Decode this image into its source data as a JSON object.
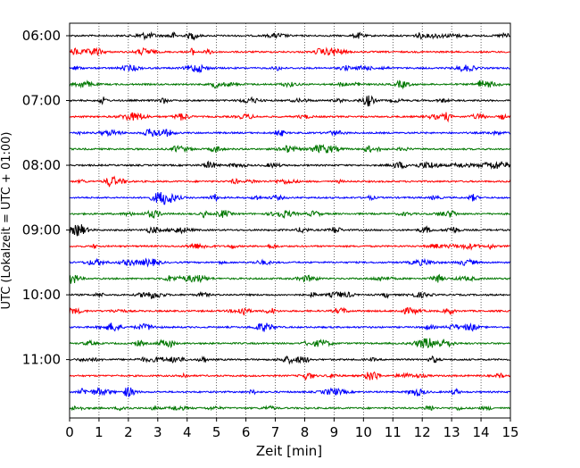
{
  "chart_data": {
    "type": "line",
    "title": "",
    "xlabel": "Zeit  [min]",
    "ylabel": "UTC (Lokalzeit = UTC + 01:00)",
    "xlim": [
      0,
      15
    ],
    "x_ticks": [
      "0",
      "1",
      "2",
      "3",
      "4",
      "5",
      "6",
      "7",
      "8",
      "9",
      "10",
      "11",
      "12",
      "13",
      "14",
      "15"
    ],
    "y_tick_labels": [
      "06:00",
      "07:00",
      "08:00",
      "09:00",
      "10:00",
      "11:00"
    ],
    "grid": "vertical dotted at each minute",
    "rows_start": "06:00",
    "row_interval_minutes": 15,
    "row_count": 24,
    "trace_colors": [
      "#000000",
      "#ff0000",
      "#0000ff",
      "#007700"
    ],
    "legend": "none"
  }
}
